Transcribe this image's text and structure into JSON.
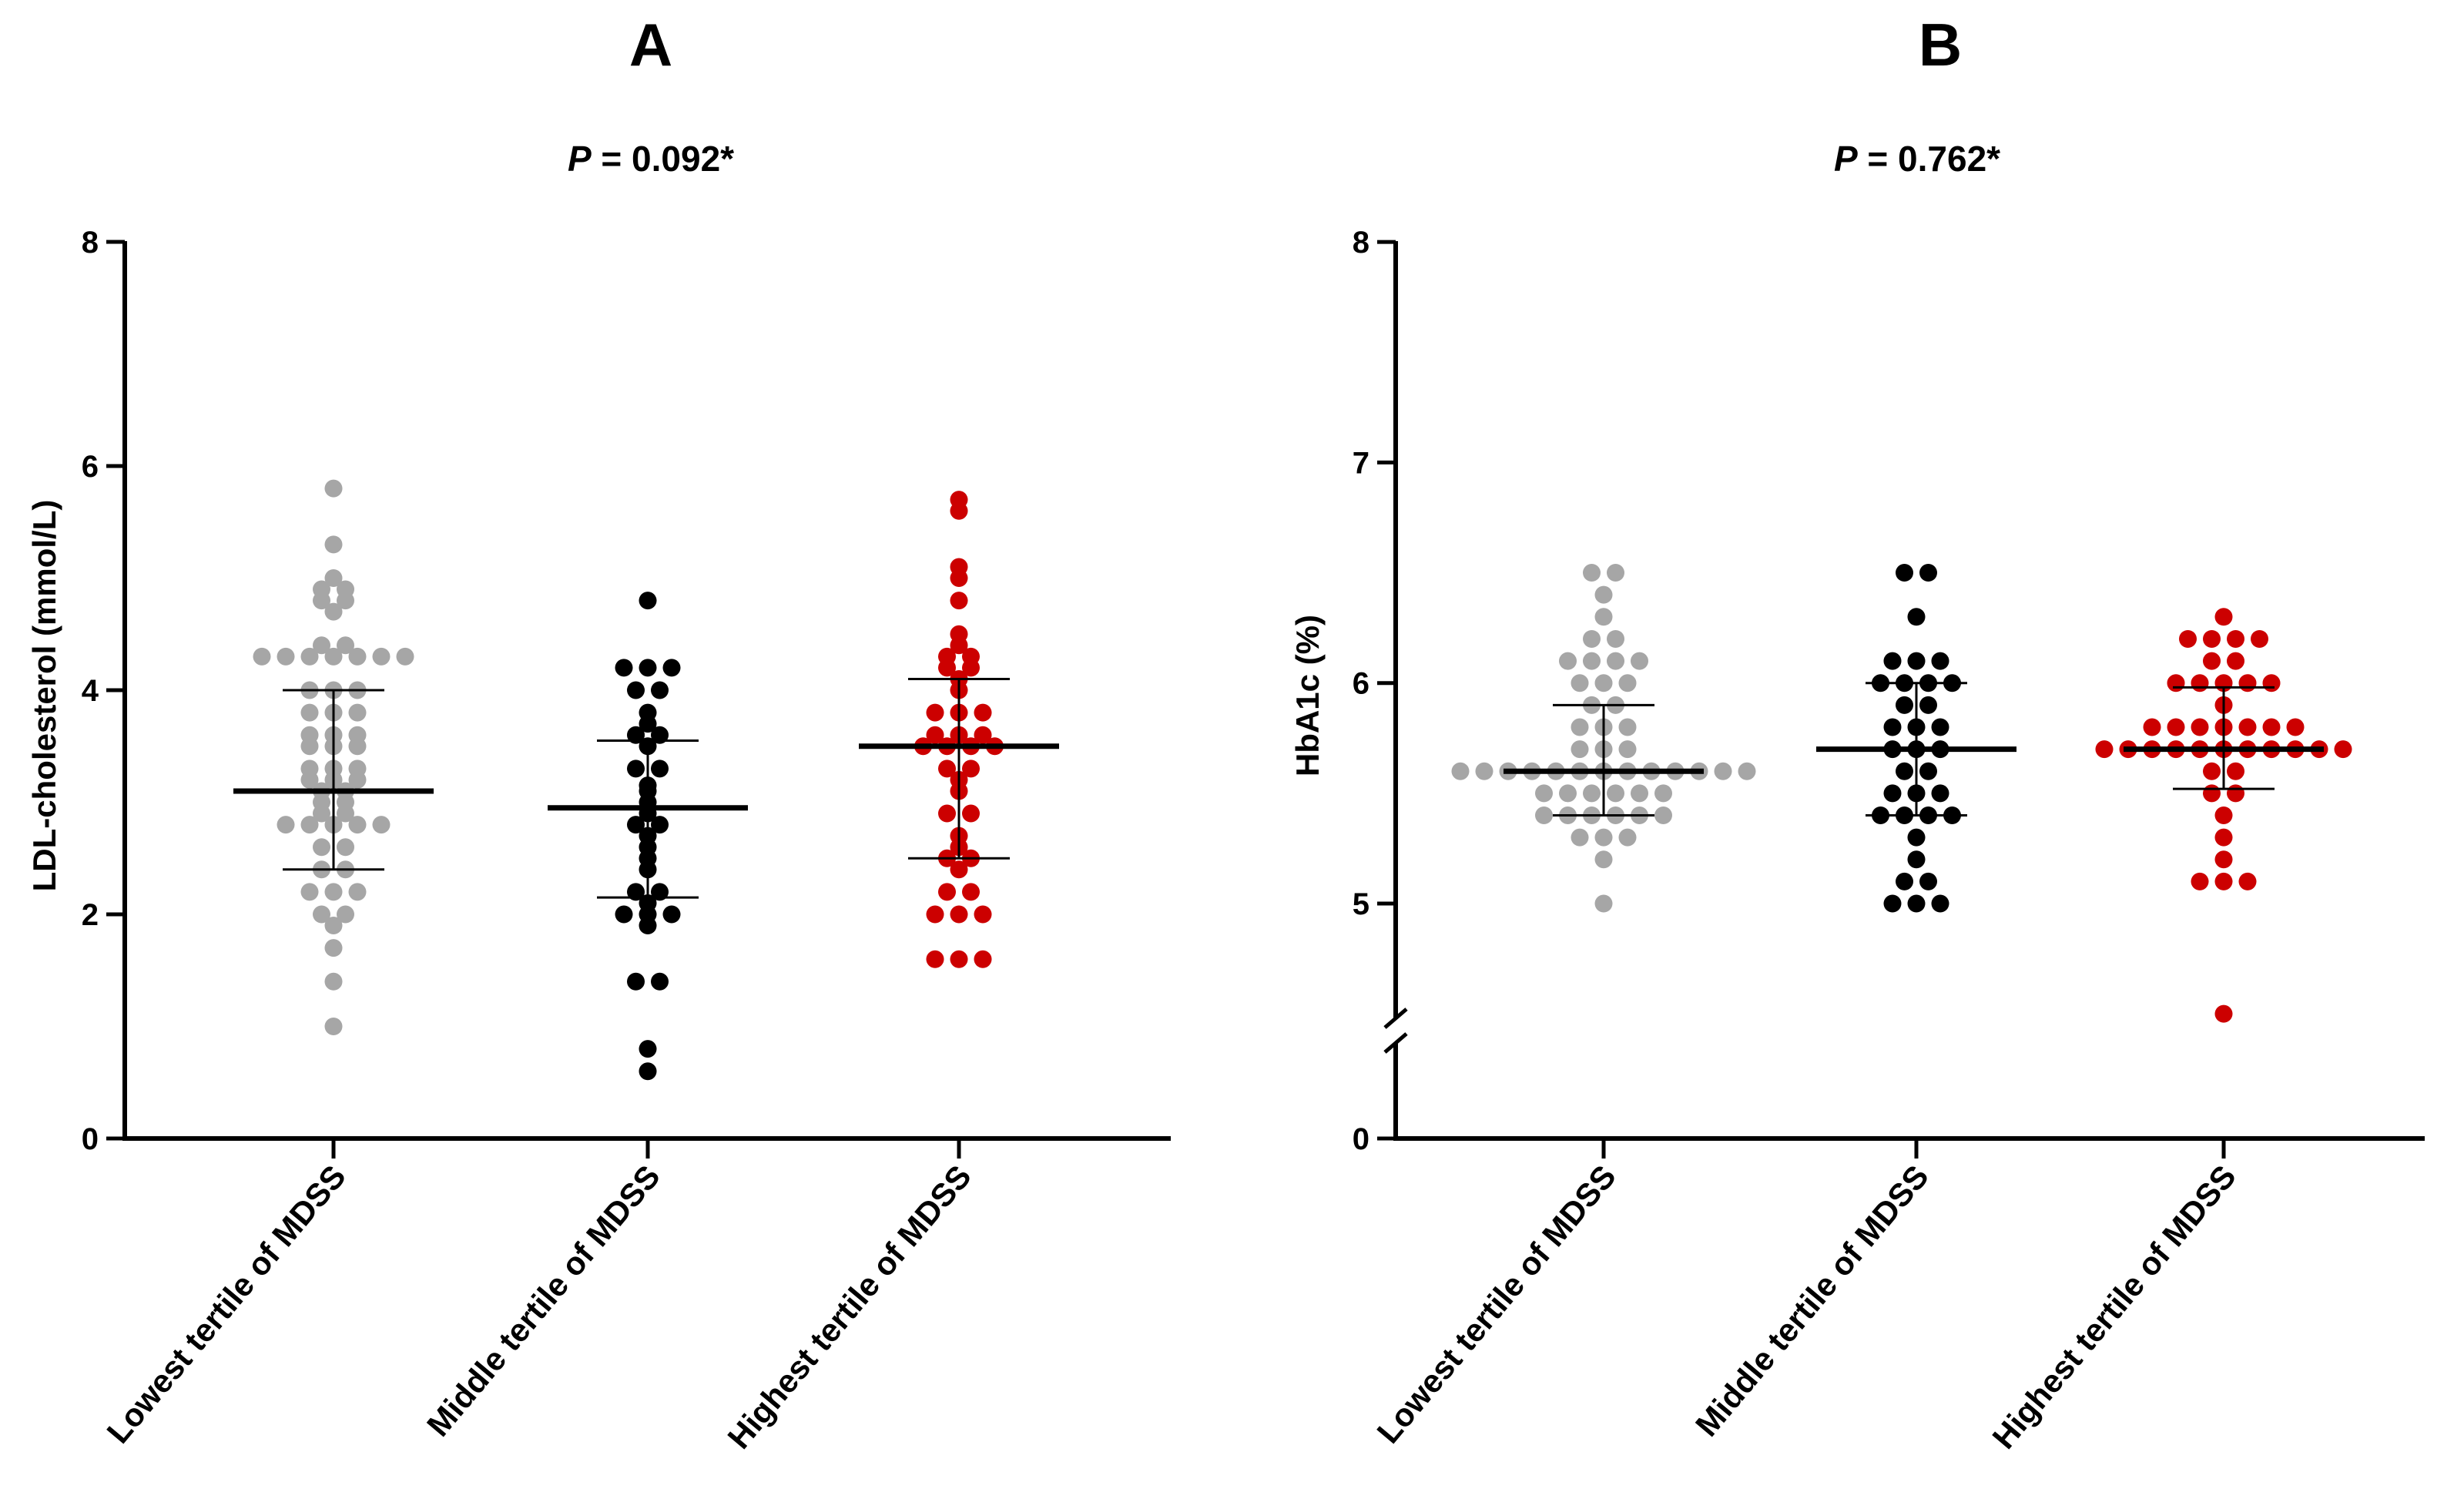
{
  "chart_data": [
    {
      "type": "scatter",
      "panel_label": "A",
      "p_value": {
        "symbol": "P",
        "text": " = 0.092*"
      },
      "ylabel": "LDL-cholesterol (mmol/L)",
      "ylim": [
        0,
        8
      ],
      "yticks": [
        "0",
        "2",
        "4",
        "6",
        "8"
      ],
      "axis_break": false,
      "categories": [
        "Lowest tertile of MDSS",
        "Middle tertile of MDSS",
        "Highest tertile of MDSS"
      ],
      "grid": false,
      "legend": "none",
      "series": [
        {
          "color": "#a6a6a6",
          "mean": 3.1,
          "sd_upper": 4.0,
          "sd_lower": 2.4,
          "values": [
            5.8,
            5.3,
            5.0,
            4.9,
            4.9,
            4.8,
            4.8,
            4.7,
            4.4,
            4.4,
            4.3,
            4.3,
            4.3,
            4.3,
            4.3,
            4.3,
            4.3,
            4.0,
            4.0,
            4.0,
            3.8,
            3.8,
            3.8,
            3.6,
            3.6,
            3.6,
            3.5,
            3.5,
            3.5,
            3.3,
            3.3,
            3.3,
            3.2,
            3.2,
            3.2,
            3.1,
            3.1,
            3.0,
            3.0,
            2.9,
            2.9,
            2.8,
            2.8,
            2.8,
            2.8,
            2.8,
            2.6,
            2.6,
            2.4,
            2.4,
            2.2,
            2.2,
            2.2,
            2.0,
            2.0,
            1.9,
            1.7,
            1.4,
            1.0
          ]
        },
        {
          "color": "#000000",
          "mean": 2.95,
          "sd_upper": 3.55,
          "sd_lower": 2.15,
          "values": [
            4.8,
            4.2,
            4.2,
            4.2,
            4.0,
            4.0,
            3.8,
            3.7,
            3.6,
            3.6,
            3.5,
            3.3,
            3.3,
            3.15,
            3.1,
            3.0,
            2.9,
            2.8,
            2.8,
            2.7,
            2.6,
            2.5,
            2.4,
            2.2,
            2.2,
            2.1,
            2.0,
            2.0,
            2.0,
            1.9,
            1.4,
            1.4,
            0.8,
            0.6
          ]
        },
        {
          "color": "#cc0000",
          "mean": 3.5,
          "sd_upper": 4.1,
          "sd_lower": 2.5,
          "values": [
            5.7,
            5.6,
            5.1,
            5.0,
            4.8,
            4.5,
            4.4,
            4.3,
            4.3,
            4.2,
            4.2,
            4.1,
            4.0,
            3.8,
            3.8,
            3.8,
            3.6,
            3.6,
            3.6,
            3.5,
            3.5,
            3.5,
            3.5,
            3.3,
            3.3,
            3.2,
            3.1,
            2.9,
            2.9,
            2.7,
            2.6,
            2.5,
            2.5,
            2.4,
            2.2,
            2.2,
            2.0,
            2.0,
            2.0,
            1.6,
            1.6,
            1.6
          ]
        }
      ]
    },
    {
      "type": "scatter",
      "panel_label": "B",
      "p_value": {
        "symbol": "P",
        "text": " = 0.762*"
      },
      "ylabel": "HbA1c (%)",
      "ylim": [
        0,
        8
      ],
      "yticks": [
        "0",
        "5",
        "6",
        "7",
        "8"
      ],
      "axis_break": true,
      "axis_break_between": [
        0,
        5
      ],
      "categories": [
        "Lowest tertile of MDSS",
        "Middle tertile of MDSS",
        "Highest tertile of MDSS"
      ],
      "grid": false,
      "legend": "none",
      "series": [
        {
          "color": "#a6a6a6",
          "mean": 5.6,
          "sd_upper": 5.9,
          "sd_lower": 5.4,
          "values": [
            6.5,
            6.5,
            6.4,
            6.3,
            6.2,
            6.2,
            6.1,
            6.1,
            6.1,
            6.1,
            6.0,
            6.0,
            6.0,
            5.9,
            5.9,
            5.8,
            5.8,
            5.8,
            5.7,
            5.7,
            5.7,
            5.6,
            5.6,
            5.6,
            5.6,
            5.6,
            5.6,
            5.6,
            5.6,
            5.6,
            5.6,
            5.6,
            5.6,
            5.6,
            5.5,
            5.5,
            5.5,
            5.5,
            5.5,
            5.5,
            5.4,
            5.4,
            5.4,
            5.4,
            5.4,
            5.4,
            5.3,
            5.3,
            5.3,
            5.2,
            5.0
          ]
        },
        {
          "color": "#000000",
          "mean": 5.7,
          "sd_upper": 6.0,
          "sd_lower": 5.4,
          "values": [
            6.5,
            6.5,
            6.3,
            6.1,
            6.1,
            6.1,
            6.0,
            6.0,
            6.0,
            6.0,
            5.9,
            5.9,
            5.8,
            5.8,
            5.8,
            5.7,
            5.7,
            5.7,
            5.6,
            5.6,
            5.5,
            5.5,
            5.5,
            5.4,
            5.4,
            5.4,
            5.4,
            5.3,
            5.2,
            5.1,
            5.1,
            5.0,
            5.0,
            5.0
          ]
        },
        {
          "color": "#cc0000",
          "mean": 5.7,
          "sd_upper": 5.98,
          "sd_lower": 5.52,
          "values": [
            6.3,
            6.2,
            6.2,
            6.2,
            6.2,
            6.1,
            6.1,
            6.0,
            6.0,
            6.0,
            6.0,
            6.0,
            5.9,
            5.8,
            5.8,
            5.8,
            5.8,
            5.8,
            5.8,
            5.8,
            5.7,
            5.7,
            5.7,
            5.7,
            5.7,
            5.7,
            5.7,
            5.7,
            5.7,
            5.7,
            5.7,
            5.6,
            5.6,
            5.5,
            5.5,
            5.4,
            5.3,
            5.2,
            5.1,
            5.1,
            5.1,
            4.5
          ]
        }
      ]
    }
  ]
}
